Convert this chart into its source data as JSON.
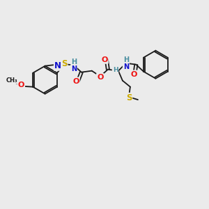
{
  "bg_color": "#ebebeb",
  "bond_color": "#1a1a1a",
  "bond_width": 1.3,
  "atom_colors": {
    "N": "#1010cc",
    "O": "#ee1111",
    "S": "#ccaa00",
    "C": "#1a1a1a",
    "H": "#4a8fa0"
  },
  "font_size": 7.0,
  "bl": 0.68
}
